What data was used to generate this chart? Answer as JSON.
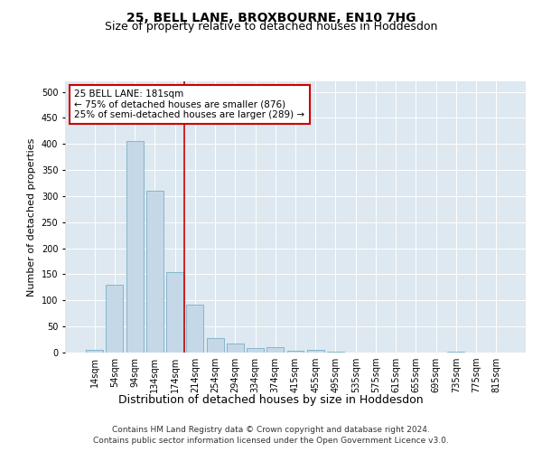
{
  "title": "25, BELL LANE, BROXBOURNE, EN10 7HG",
  "subtitle": "Size of property relative to detached houses in Hoddesdon",
  "xlabel": "Distribution of detached houses by size in Hoddesdon",
  "ylabel": "Number of detached properties",
  "footer1": "Contains HM Land Registry data © Crown copyright and database right 2024.",
  "footer2": "Contains public sector information licensed under the Open Government Licence v3.0.",
  "bar_labels": [
    "14sqm",
    "54sqm",
    "94sqm",
    "134sqm",
    "174sqm",
    "214sqm",
    "254sqm",
    "294sqm",
    "334sqm",
    "374sqm",
    "415sqm",
    "455sqm",
    "495sqm",
    "535sqm",
    "575sqm",
    "615sqm",
    "655sqm",
    "695sqm",
    "735sqm",
    "775sqm",
    "815sqm"
  ],
  "bar_values": [
    5,
    130,
    405,
    310,
    155,
    92,
    28,
    18,
    8,
    10,
    4,
    5,
    1,
    0,
    0,
    0,
    0,
    0,
    1,
    0,
    0
  ],
  "bar_color": "#c5d8e8",
  "bar_edge_color": "#7aafc8",
  "vline_color": "#cc0000",
  "vline_pos": 4.45,
  "ann_title": "25 BELL LANE: 181sqm",
  "ann_line2": "← 75% of detached houses are smaller (876)",
  "ann_line3": "25% of semi-detached houses are larger (289) →",
  "ann_box_color": "#cc0000",
  "ylim": [
    0,
    520
  ],
  "yticks": [
    0,
    50,
    100,
    150,
    200,
    250,
    300,
    350,
    400,
    450,
    500
  ],
  "plot_bg_color": "#dde8f0",
  "grid_color": "#ffffff",
  "title_fontsize": 10,
  "subtitle_fontsize": 9,
  "xlabel_fontsize": 9,
  "ylabel_fontsize": 8,
  "tick_fontsize": 7,
  "ann_fontsize": 7.5,
  "footer_fontsize": 6.5
}
